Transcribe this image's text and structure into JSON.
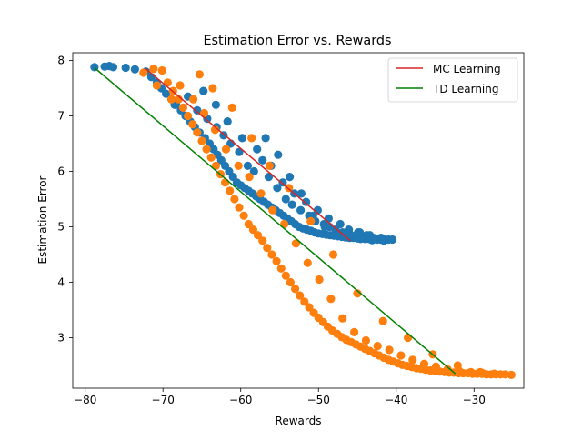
{
  "chart_data": {
    "type": "scatter",
    "title": "Estimation Error vs. Rewards",
    "xlabel": "Rewards",
    "ylabel": "Estimation Error",
    "xlim": [
      -81.6,
      -23.6
    ],
    "ylim": [
      2.09,
      8.14
    ],
    "xticks": [
      -80,
      -70,
      -60,
      -50,
      -40,
      -30
    ],
    "xtick_labels": [
      "−80",
      "−70",
      "−60",
      "−50",
      "−40",
      "−30"
    ],
    "yticks": [
      3,
      4,
      5,
      6,
      7,
      8
    ],
    "ytick_labels": [
      "3",
      "4",
      "5",
      "6",
      "7",
      "8"
    ],
    "grid": false,
    "legend_position": "top-right",
    "series": [
      {
        "name": "MC Learning",
        "kind": "line",
        "color": "#d62728",
        "x": [
          -72.2,
          -45.9
        ],
        "y": [
          7.85,
          4.75
        ]
      },
      {
        "name": "TD Learning",
        "kind": "line",
        "color": "#008000",
        "x": [
          -78.8,
          -32.4
        ],
        "y": [
          7.87,
          2.35
        ]
      },
      {
        "kind": "scatter",
        "color": "#1f77b4",
        "x": [
          -78.8,
          -77.5,
          -76.9,
          -76.4,
          -74.8,
          -73.6,
          -72.2,
          -71.5,
          -70.8,
          -70.2,
          -69.6,
          -68.9,
          -68.3,
          -67.7,
          -67.1,
          -66.5,
          -65.9,
          -65.3,
          -64.6,
          -64.0,
          -63.5,
          -63.0,
          -62.5,
          -62.0,
          -61.5,
          -61.0,
          -60.5,
          -60.0,
          -59.5,
          -59.0,
          -58.5,
          -58.0,
          -57.5,
          -57.0,
          -56.5,
          -56.0,
          -55.5,
          -55.0,
          -54.5,
          -54.0,
          -53.5,
          -53.0,
          -52.5,
          -52.0,
          -51.5,
          -51.0,
          -50.5,
          -50.0,
          -49.5,
          -49.0,
          -48.5,
          -48.0,
          -47.5,
          -47.0,
          -46.5,
          -46.0,
          -45.5,
          -45.0,
          -44.5,
          -44.0,
          -43.5,
          -43.0,
          -42.5,
          -42.0,
          -41.5,
          -41.0,
          -40.5,
          -68.5,
          -66.8,
          -65.6,
          -64.3,
          -63.1,
          -62.2,
          -61.3,
          -60.2,
          -59.1,
          -58.3,
          -57.2,
          -56.4,
          -55.3,
          -54.2,
          -53.4,
          -52.3,
          -51.2,
          -50.4,
          -49.3,
          -48.6,
          -47.8,
          -46.9,
          -45.8,
          -44.7,
          -43.8,
          -42.9,
          -42.0,
          -64.8,
          -63.2,
          -61.7,
          -59.8,
          -57.9,
          -56.1,
          -54.6,
          -53.1,
          -51.6,
          -50.1,
          -48.7,
          -47.2,
          -46.1,
          -44.9,
          -43.4,
          -41.9,
          -56.8,
          -55.2,
          -53.7,
          -52.2,
          -50.7,
          -49.2,
          -47.7,
          -46.2,
          -44.6,
          -43.1,
          -41.6
        ],
        "y": [
          7.88,
          7.89,
          7.9,
          7.88,
          7.87,
          7.84,
          7.8,
          7.7,
          7.6,
          7.5,
          7.4,
          7.3,
          7.2,
          7.1,
          7.0,
          6.9,
          6.8,
          6.7,
          6.6,
          6.5,
          6.4,
          6.3,
          6.2,
          6.1,
          6.0,
          5.9,
          5.8,
          5.75,
          5.7,
          5.65,
          5.6,
          5.55,
          5.5,
          5.45,
          5.4,
          5.35,
          5.3,
          5.25,
          5.2,
          5.15,
          5.1,
          5.05,
          5.0,
          4.97,
          4.95,
          4.93,
          4.9,
          4.88,
          4.87,
          4.86,
          4.85,
          4.84,
          4.83,
          4.82,
          4.81,
          4.8,
          4.8,
          4.79,
          4.79,
          4.78,
          4.78,
          4.78,
          4.77,
          4.77,
          4.77,
          4.77,
          4.77,
          7.2,
          7.35,
          7.1,
          6.95,
          6.8,
          6.65,
          6.5,
          6.35,
          6.1,
          6.0,
          6.2,
          5.9,
          5.7,
          5.5,
          5.4,
          5.3,
          5.2,
          5.1,
          5.05,
          5.0,
          4.95,
          4.9,
          4.85,
          4.9,
          4.85,
          4.8,
          4.8,
          7.45,
          7.2,
          6.9,
          6.6,
          6.4,
          6.1,
          5.8,
          5.6,
          5.45,
          5.3,
          5.15,
          5.05,
          4.95,
          4.9,
          4.85,
          4.8,
          6.6,
          6.3,
          5.9,
          5.6,
          5.2,
          5.0,
          4.9,
          4.82,
          4.78,
          4.76,
          4.75
        ]
      },
      {
        "kind": "scatter",
        "color": "#ff7f0e",
        "x": [
          -71.2,
          -70.1,
          -69.4,
          -68.7,
          -68.0,
          -67.4,
          -66.8,
          -66.2,
          -65.6,
          -65.0,
          -64.4,
          -63.8,
          -63.2,
          -62.6,
          -62.0,
          -61.4,
          -60.8,
          -60.2,
          -59.6,
          -59.0,
          -58.4,
          -57.8,
          -57.2,
          -56.6,
          -56.0,
          -55.4,
          -54.8,
          -54.2,
          -53.6,
          -53.0,
          -52.4,
          -51.8,
          -51.2,
          -50.6,
          -50.0,
          -49.4,
          -48.8,
          -48.2,
          -47.6,
          -47.0,
          -46.4,
          -45.8,
          -45.2,
          -44.6,
          -44.0,
          -43.4,
          -42.8,
          -42.2,
          -41.6,
          -41.0,
          -40.4,
          -39.8,
          -39.2,
          -38.6,
          -38.0,
          -37.4,
          -36.8,
          -36.2,
          -35.6,
          -35.0,
          -34.4,
          -33.8,
          -33.2,
          -32.6,
          -32.0,
          -31.4,
          -30.8,
          -30.2,
          -29.6,
          -29.0,
          -28.4,
          -27.8,
          -27.2,
          -26.6,
          -26.0,
          -25.2,
          -67.8,
          -66.1,
          -64.7,
          -63.3,
          -61.9,
          -60.3,
          -58.9,
          -57.4,
          -55.9,
          -54.4,
          -52.9,
          -51.4,
          -49.9,
          -48.4,
          -46.9,
          -45.4,
          -43.9,
          -42.4,
          -40.9,
          -39.4,
          -37.9,
          -36.4,
          -34.9,
          -33.4,
          -31.9,
          -30.4,
          -28.9,
          -27.4,
          -65.3,
          -63.6,
          -61.1,
          -58.6,
          -56.3,
          -53.8,
          -51.0,
          -48.1,
          -45.0,
          -41.7,
          -38.5,
          -35.3,
          -32.1,
          -29.2,
          -72.5,
          -70.8,
          -68.9
        ],
        "y": [
          7.85,
          7.82,
          7.6,
          7.45,
          7.3,
          7.15,
          7.0,
          6.85,
          6.7,
          6.55,
          6.4,
          6.25,
          6.1,
          5.95,
          5.8,
          5.65,
          5.5,
          5.35,
          5.2,
          5.05,
          4.95,
          4.85,
          4.75,
          4.62,
          4.5,
          4.38,
          4.25,
          4.12,
          4.0,
          3.88,
          3.76,
          3.65,
          3.55,
          3.45,
          3.36,
          3.28,
          3.2,
          3.13,
          3.07,
          3.01,
          2.96,
          2.92,
          2.88,
          2.84,
          2.8,
          2.76,
          2.72,
          2.68,
          2.64,
          2.6,
          2.57,
          2.54,
          2.51,
          2.49,
          2.47,
          2.45,
          2.44,
          2.42,
          2.41,
          2.4,
          2.39,
          2.38,
          2.37,
          2.37,
          2.36,
          2.36,
          2.36,
          2.35,
          2.35,
          2.35,
          2.34,
          2.34,
          2.34,
          2.34,
          2.34,
          2.33,
          7.55,
          7.3,
          7.05,
          6.75,
          6.4,
          6.1,
          5.9,
          5.6,
          5.3,
          5.05,
          4.7,
          4.35,
          4.05,
          3.7,
          3.35,
          3.1,
          2.95,
          2.85,
          2.78,
          2.68,
          2.6,
          2.53,
          2.48,
          2.43,
          2.4,
          2.38,
          2.36,
          2.35,
          7.75,
          7.5,
          7.15,
          6.6,
          6.1,
          5.7,
          5.1,
          4.5,
          3.8,
          3.3,
          3.0,
          2.7,
          2.5,
          2.38,
          7.78,
          7.55,
          7.3
        ]
      }
    ]
  }
}
